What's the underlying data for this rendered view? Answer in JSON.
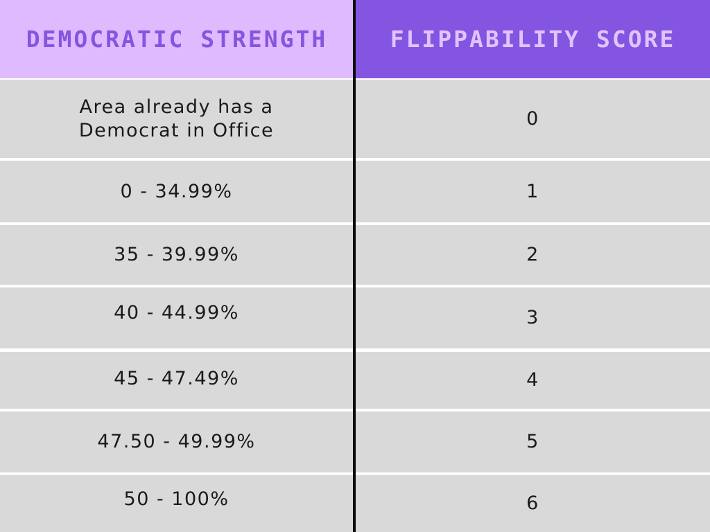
{
  "table": {
    "headers": {
      "democratic_strength": "DEMOCRATIC STRENGTH",
      "flippability_score": "FLIPPABILITY SCORE"
    },
    "rows": [
      {
        "strength": "Area already has a Democrat in Office",
        "score": "0"
      },
      {
        "strength": "0 - 34.99%",
        "score": "1"
      },
      {
        "strength": "35 - 39.99%",
        "score": "2"
      },
      {
        "strength": "40 - 44.99%",
        "score": "3"
      },
      {
        "strength": "45 - 47.49%",
        "score": "4"
      },
      {
        "strength": "47.50 - 49.99%",
        "score": "5"
      },
      {
        "strength": "50 - 100%",
        "score": "6"
      }
    ]
  },
  "colors": {
    "left_header_bg": "#dfbaff",
    "left_header_text": "#8655df",
    "right_header_bg": "#8455e0",
    "right_header_text": "#e1c4ff",
    "cell_bg": "#d9d9d9",
    "divider": "#0a0a0a"
  }
}
